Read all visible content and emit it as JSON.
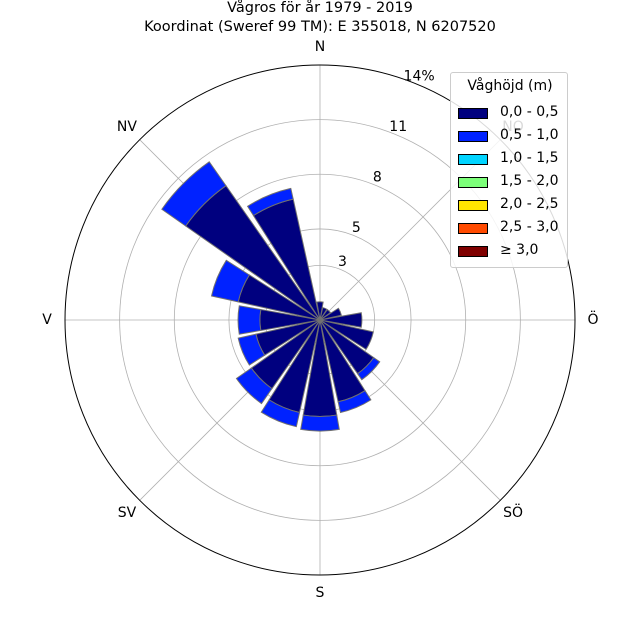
{
  "title": {
    "line1": "Vågros för år 1979 - 2019",
    "line2": "Koordinat (Sweref 99 TM): E 355018, N 6207520"
  },
  "legend": {
    "title": "Våghöjd (m)",
    "entries": [
      {
        "label": "0,0 - 0,5",
        "color": "#00007f"
      },
      {
        "label": "0,5 - 1,0",
        "color": "#0022ff"
      },
      {
        "label": "1,0 - 1,5",
        "color": "#00d4ff"
      },
      {
        "label": "1,5 - 2,0",
        "color": "#7cff79"
      },
      {
        "label": "2,0 - 2,5",
        "color": "#ffe500"
      },
      {
        "label": "2,5 - 3,0",
        "color": "#ff4a00"
      },
      {
        "label": "≥ 3,0",
        "color": "#7f0000"
      }
    ]
  },
  "chart_data": {
    "type": "windrose",
    "direction_labels": [
      "N",
      "NO",
      "Ö",
      "SÖ",
      "S",
      "SV",
      "V",
      "NV"
    ],
    "radial_ticks": [
      "3",
      "5",
      "8",
      "11",
      "14%"
    ],
    "radial_max": 14,
    "sector_directions_deg": [
      0,
      22.5,
      45,
      67.5,
      90,
      112.5,
      135,
      157.5,
      180,
      202.5,
      225,
      247.5,
      270,
      292.5,
      315,
      337.5
    ],
    "series": [
      {
        "name": "0,0 - 0,5",
        "values": [
          1.0,
          0.7,
          0.7,
          1.2,
          2.3,
          3.0,
          3.6,
          4.6,
          5.3,
          5.2,
          4.6,
          3.6,
          3.3,
          4.6,
          9.0,
          6.8
        ]
      },
      {
        "name": "0,5 - 1,0",
        "values": [
          0.0,
          0.0,
          0.0,
          0.0,
          0.0,
          0.0,
          0.4,
          0.6,
          0.8,
          0.8,
          1.0,
          1.0,
          1.2,
          1.5,
          1.6,
          0.6
        ]
      }
    ],
    "grid": true
  }
}
